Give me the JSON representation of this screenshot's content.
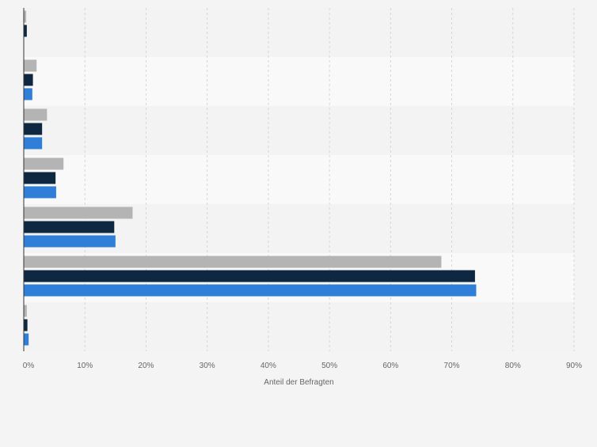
{
  "chart_data": {
    "type": "bar",
    "orientation": "horizontal",
    "xlabel": "Anteil der Befragten",
    "ylabel": "",
    "xlim": [
      0,
      90
    ],
    "x_ticks": [
      0,
      10,
      20,
      30,
      40,
      50,
      60,
      70,
      80,
      90
    ],
    "tick_suffix": "%",
    "grid": true,
    "legend": "none",
    "categories": [
      "",
      "",
      "",
      "",
      "",
      "",
      ""
    ],
    "series": [
      {
        "color": "#b4b4b4",
        "values": [
          0.4,
          2.1,
          3.8,
          6.5,
          17.8,
          68.3,
          0.5
        ]
      },
      {
        "color": "#0e2841",
        "values": [
          0.5,
          1.5,
          3.0,
          5.2,
          14.8,
          73.8,
          0.6
        ]
      },
      {
        "color": "#2f7ed8",
        "values": [
          0.0,
          1.4,
          3.0,
          5.3,
          15.0,
          74.0,
          0.8
        ]
      }
    ]
  }
}
